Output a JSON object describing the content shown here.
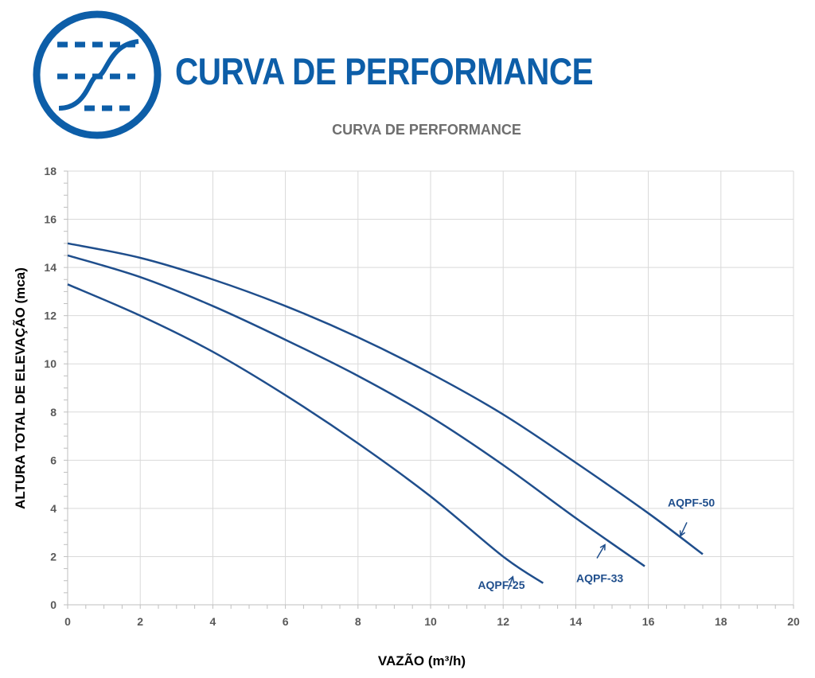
{
  "header": {
    "brand_title": "CURVA DE PERFORMANCE",
    "logo_icon": "performance-curve-icon",
    "brand_color": "#0d5ea8"
  },
  "chart_data": {
    "type": "line",
    "title": "CURVA DE PERFORMANCE",
    "xlabel": "VAZÃO (m³/h)",
    "ylabel": "ALTURA TOTAL DE ELEVAÇÃO (mca)",
    "xlim": [
      0,
      20
    ],
    "ylim": [
      0,
      18
    ],
    "xticks": [
      0,
      2,
      4,
      6,
      8,
      10,
      12,
      14,
      16,
      18,
      20
    ],
    "yticks": [
      0,
      2,
      4,
      6,
      8,
      10,
      12,
      14,
      16,
      18
    ],
    "grid": true,
    "line_color": "#1f4e8c",
    "series": [
      {
        "name": "AQPF-25",
        "x": [
          0,
          2,
          4,
          6,
          8,
          10,
          12,
          13.1
        ],
        "y": [
          13.3,
          12.0,
          10.5,
          8.7,
          6.7,
          4.5,
          2.0,
          0.9
        ]
      },
      {
        "name": "AQPF-33",
        "x": [
          0,
          2,
          4,
          6,
          8,
          10,
          12,
          14,
          15.9
        ],
        "y": [
          14.5,
          13.6,
          12.4,
          11.0,
          9.5,
          7.8,
          5.8,
          3.6,
          1.6
        ]
      },
      {
        "name": "AQPF-50",
        "x": [
          0,
          2,
          4,
          6,
          8,
          10,
          12,
          14,
          16,
          17.5
        ],
        "y": [
          15.0,
          14.4,
          13.5,
          12.4,
          11.1,
          9.6,
          7.9,
          5.9,
          3.8,
          2.1
        ]
      }
    ]
  }
}
